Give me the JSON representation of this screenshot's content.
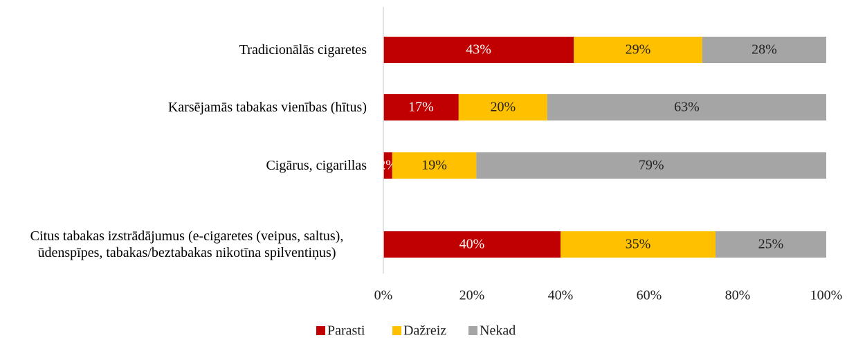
{
  "chart_data": {
    "type": "stacked-barh",
    "categories": [
      "Tradicionālās cigaretes",
      "Karsējamās tabakas vienības (hītus)",
      "Cigārus, cigarillas",
      "Citus tabakas izstrādājumus (e-cigaretes (veipus, saltus), ūdenspīpes, tabakas/beztabakas nikotīna spilventiņus)"
    ],
    "series": [
      {
        "name": "Parasti",
        "color": "#c00000",
        "values": [
          43,
          17,
          2,
          40
        ],
        "value_labels": [
          "43%",
          "17%",
          "2%",
          "40%"
        ]
      },
      {
        "name": "Dažreiz",
        "color": "#ffc000",
        "values": [
          29,
          20,
          19,
          35
        ],
        "value_labels": [
          "29%",
          "20%",
          "19%",
          "35%"
        ]
      },
      {
        "name": "Nekad",
        "color": "#a5a5a5",
        "values": [
          28,
          63,
          79,
          25
        ],
        "value_labels": [
          "28%",
          "63%",
          "79%",
          "25%"
        ]
      }
    ],
    "xlim": [
      0,
      100
    ],
    "xticks": [
      {
        "value": 0,
        "label": "0%"
      },
      {
        "value": 20,
        "label": "20%"
      },
      {
        "value": 40,
        "label": "40%"
      },
      {
        "value": 60,
        "label": "60%"
      },
      {
        "value": 80,
        "label": "80%"
      },
      {
        "value": 100,
        "label": "100%"
      }
    ],
    "legend": "bottom"
  }
}
